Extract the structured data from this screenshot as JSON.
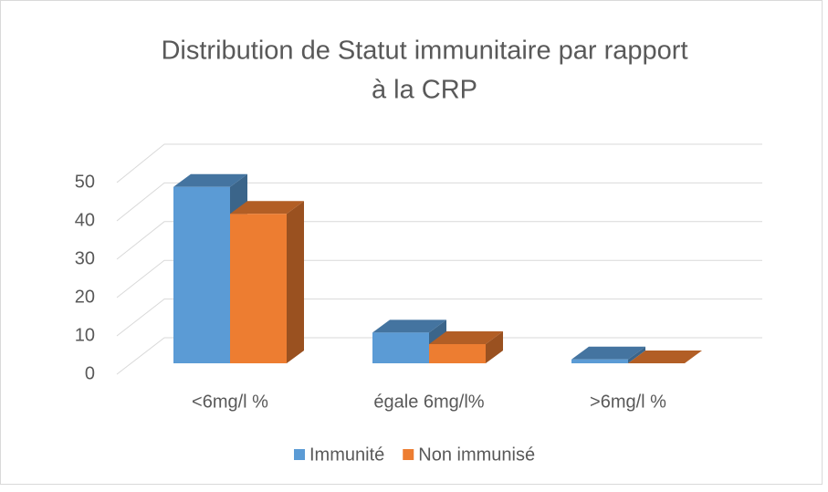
{
  "chart_data": {
    "type": "bar",
    "title": [
      "Distribution de Statut immunitaire par rapport",
      "à la CRP"
    ],
    "categories": [
      "<6mg/l %",
      "égale 6mg/l%",
      ">6mg/l %"
    ],
    "series": [
      {
        "name": "Immunité",
        "color": "#5b9bd5",
        "values": [
          46,
          8,
          1
        ]
      },
      {
        "name": "Non immunisé",
        "color": "#ed7d31",
        "values": [
          39,
          5,
          0
        ]
      }
    ],
    "ylim": [
      0,
      50
    ],
    "yticks": [
      0,
      10,
      20,
      30,
      40,
      50
    ],
    "grid": true
  }
}
